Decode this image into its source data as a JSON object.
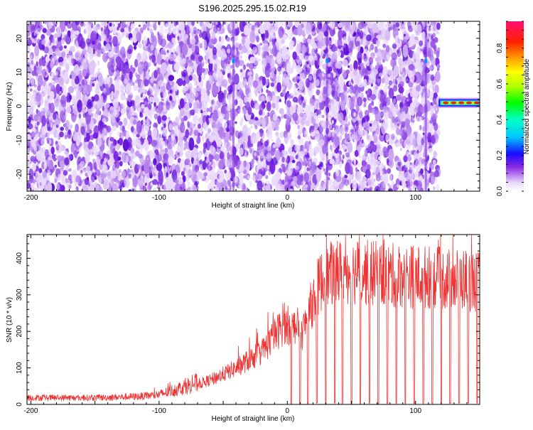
{
  "title": "S196.2025.295.15.02.R19",
  "chart_data": [
    {
      "type": "heatmap",
      "xlabel": "Height of straight line (km)",
      "ylabel": "Frequency (Hz)",
      "xlim": [
        -203,
        150
      ],
      "ylim": [
        -25,
        25
      ],
      "x_ticks": [
        -200,
        -100,
        0,
        100
      ],
      "y_ticks": [
        -20,
        -10,
        0,
        10,
        20
      ],
      "x_tick_labels": [
        "-200",
        "-100",
        "0",
        "100"
      ],
      "y_tick_labels": [
        "-20",
        "-10",
        "0",
        "10",
        "20"
      ],
      "data_extent_km": [
        -203,
        118
      ],
      "features": [
        {
          "kind": "vertical-streak",
          "x_km": -42
        },
        {
          "kind": "vertical-streak",
          "x_km": 31
        },
        {
          "kind": "vertical-streak",
          "x_km": 108
        },
        {
          "kind": "signal-band",
          "x_range_km": [
            118,
            150
          ],
          "freq_hz": 1,
          "peak_amplitude": 0.9
        }
      ],
      "colorbar": {
        "label": "Normalized spectral amplitude",
        "range": [
          0,
          0.95
        ],
        "ticks": [
          0.0,
          0.2,
          0.4,
          0.6,
          0.8
        ],
        "tick_labels": [
          "0.0",
          "0.2",
          "0.4",
          "0.6",
          "0.8"
        ]
      }
    },
    {
      "type": "line",
      "xlabel": "Height of straight line (km)",
      "ylabel": "SNR (10 * v/v)",
      "xlim": [
        -203,
        150
      ],
      "ylim": [
        0,
        465
      ],
      "x_ticks": [
        -200,
        -100,
        0,
        100
      ],
      "y_ticks": [
        0,
        100,
        200,
        300,
        400
      ],
      "x_tick_labels": [
        "-200",
        "-100",
        "0",
        "100"
      ],
      "y_tick_labels": [
        "0",
        "100",
        "200",
        "300",
        "400"
      ],
      "series": [
        {
          "name": "SNR",
          "color": "#ee3333",
          "envelope": {
            "x": [
              -203,
              -150,
              -115,
              -100,
              -80,
              -60,
              -40,
              -20,
              -5,
              5,
              12,
              18,
              25,
              35,
              50,
              65,
              80,
              95,
              110,
              125,
              140,
              150
            ],
            "y": [
              15,
              15,
              18,
              22,
              40,
              60,
              90,
              130,
              190,
              200,
              180,
              240,
              300,
              325,
              330,
              325,
              320,
              318,
              315,
              310,
              310,
              300
            ]
          },
          "dropouts_km": [
            3,
            10,
            16,
            23,
            30,
            37,
            43,
            50,
            57,
            64,
            71,
            78,
            85,
            92,
            99,
            106,
            113,
            120,
            127,
            134,
            141,
            148
          ]
        }
      ]
    }
  ]
}
